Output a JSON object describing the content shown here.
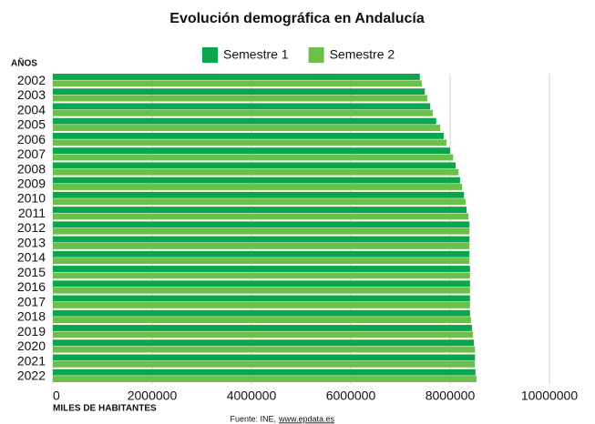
{
  "chart_data": {
    "type": "hbar",
    "title": "Evolución demográfica en Andalucía",
    "ylabel": "AÑOS",
    "xlabel": "MILES DE HABITANTES",
    "source": "Fuente: INE,",
    "source_link": "www.epdata.es",
    "categories": [
      "2002",
      "2003",
      "2004",
      "2005",
      "2006",
      "2007",
      "2008",
      "2009",
      "2010",
      "2011",
      "2012",
      "2013",
      "2014",
      "2015",
      "2016",
      "2017",
      "2018",
      "2019",
      "2020",
      "2021",
      "2022"
    ],
    "series": [
      {
        "name": "Semestre 1",
        "color": "#0ba64c",
        "values": [
          7390000,
          7490000,
          7600000,
          7720000,
          7870000,
          8000000,
          8110000,
          8200000,
          8280000,
          8330000,
          8390000,
          8390000,
          8390000,
          8400000,
          8400000,
          8400000,
          8400000,
          8440000,
          8480000,
          8500000,
          8510000
        ]
      },
      {
        "name": "Semestre 2",
        "color": "#6cc04a",
        "values": [
          7430000,
          7540000,
          7650000,
          7800000,
          7930000,
          8060000,
          8170000,
          8240000,
          8310000,
          8370000,
          8390000,
          8390000,
          8390000,
          8400000,
          8400000,
          8400000,
          8420000,
          8460000,
          8500000,
          8500000,
          8530000
        ]
      }
    ],
    "xlim": [
      0,
      10000000
    ],
    "xticks": [
      0,
      2000000,
      4000000,
      6000000,
      8000000,
      10000000
    ],
    "grid": true,
    "legend": "top"
  }
}
